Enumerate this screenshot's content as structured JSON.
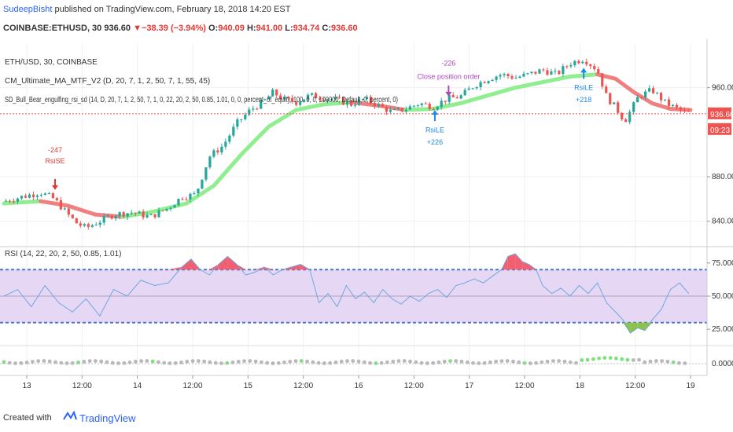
{
  "header": {
    "author": "SudeepBisht",
    "published_text": "published on TradingView.com, February 18, 2018 14:20 EST",
    "symbol": "COINBASE:ETHUSD, 30",
    "price": "936.60",
    "change": "▼−38.39 (−3.94%)",
    "o_label": "O:",
    "o_value": "940.09",
    "h_label": "H:",
    "h_value": "941.00",
    "l_label": "L:",
    "l_value": "934.74",
    "c_label": "C:",
    "c_value": "936.60"
  },
  "footer": {
    "created_with": "Created with",
    "brand": "TradingView"
  },
  "colors": {
    "up": "#26a69a",
    "down": "#ef5350",
    "ma_up": "#90ee90",
    "ma_down": "#f08080",
    "rsi_line": "#6fa8dc",
    "rsi_band": "#e6d7f5",
    "accent": "#2962ff"
  },
  "chart_data": [
    {
      "type": "candlestick",
      "title_lines": [
        "ETH/USD, 30, COINBASE",
        "CM_Ultimate_MA_MTF_V2 (D, 20, 7, 1, 2, 50, 7, 1, 55, 45)",
        "SD_Bull_Bear_engulfing_rsi_sd (14, D, 20, 7, 1, 2, 50, 7, 1, 0, 22, 20, 2, 50, 0.85, 1.01, 0, 0, percent_of_equity, 100, 0, 0, 100000, Default, 0, percent, 0)"
      ],
      "ylim": [
        820,
        1000
      ],
      "y_ticks": [
        "960.00",
        "880.00",
        "840.00"
      ],
      "last_price_label": "936.60",
      "countdown_label": "09:23",
      "annotations": [
        {
          "text": "-247",
          "x": 0.056,
          "y": 902
        },
        {
          "text": "RsiSE",
          "x": 0.056,
          "y": 892
        },
        {
          "text": "-226",
          "x": 0.487,
          "y": 980
        },
        {
          "text": "Close position order",
          "x": 0.487,
          "y": 968
        },
        {
          "text": "RsiLE",
          "x": 0.472,
          "y": 920
        },
        {
          "text": "+226",
          "x": 0.472,
          "y": 909
        },
        {
          "text": "RsiLE",
          "x": 0.635,
          "y": 958
        },
        {
          "text": "+218",
          "x": 0.635,
          "y": 947
        }
      ],
      "price_points": [
        [
          0.0,
          858
        ],
        [
          0.02,
          862
        ],
        [
          0.04,
          866
        ],
        [
          0.055,
          860
        ],
        [
          0.07,
          846
        ],
        [
          0.08,
          838
        ],
        [
          0.09,
          834
        ],
        [
          0.105,
          840
        ],
        [
          0.12,
          846
        ],
        [
          0.14,
          848
        ],
        [
          0.16,
          844
        ],
        [
          0.18,
          852
        ],
        [
          0.195,
          862
        ],
        [
          0.21,
          864
        ],
        [
          0.225,
          898
        ],
        [
          0.24,
          908
        ],
        [
          0.255,
          928
        ],
        [
          0.27,
          940
        ],
        [
          0.285,
          948
        ],
        [
          0.295,
          956
        ],
        [
          0.305,
          950
        ],
        [
          0.32,
          947
        ],
        [
          0.335,
          953
        ],
        [
          0.35,
          951
        ],
        [
          0.365,
          949
        ],
        [
          0.38,
          945
        ],
        [
          0.395,
          950
        ],
        [
          0.41,
          944
        ],
        [
          0.425,
          938
        ],
        [
          0.44,
          941
        ],
        [
          0.455,
          946
        ],
        [
          0.47,
          943
        ],
        [
          0.485,
          950
        ],
        [
          0.5,
          952
        ],
        [
          0.515,
          962
        ],
        [
          0.53,
          968
        ],
        [
          0.545,
          972
        ],
        [
          0.56,
          969
        ],
        [
          0.575,
          972
        ],
        [
          0.59,
          976
        ],
        [
          0.605,
          972
        ],
        [
          0.62,
          982
        ],
        [
          0.635,
          986
        ],
        [
          0.65,
          976
        ],
        [
          0.66,
          952
        ],
        [
          0.67,
          942
        ],
        [
          0.68,
          930
        ],
        [
          0.695,
          952
        ],
        [
          0.71,
          958
        ],
        [
          0.725,
          946
        ],
        [
          0.735,
          942
        ],
        [
          0.745,
          938
        ],
        [
          0.752,
          937
        ]
      ],
      "ma_points": [
        [
          0.0,
          856
        ],
        [
          0.04,
          858
        ],
        [
          0.07,
          854
        ],
        [
          0.1,
          846
        ],
        [
          0.13,
          844
        ],
        [
          0.16,
          848
        ],
        [
          0.2,
          856
        ],
        [
          0.23,
          872
        ],
        [
          0.26,
          900
        ],
        [
          0.29,
          925
        ],
        [
          0.32,
          940
        ],
        [
          0.35,
          945
        ],
        [
          0.38,
          947
        ],
        [
          0.41,
          944
        ],
        [
          0.44,
          940
        ],
        [
          0.47,
          941
        ],
        [
          0.5,
          946
        ],
        [
          0.53,
          953
        ],
        [
          0.56,
          960
        ],
        [
          0.59,
          965
        ],
        [
          0.62,
          970
        ],
        [
          0.65,
          972
        ],
        [
          0.67,
          968
        ],
        [
          0.69,
          956
        ],
        [
          0.71,
          946
        ],
        [
          0.73,
          941
        ],
        [
          0.752,
          940
        ]
      ]
    },
    {
      "type": "line",
      "title": "RSI (14, 22, 20, 2, 50, 0.85, 1.01)",
      "ylim": [
        15,
        85
      ],
      "y_ticks": [
        "75.0000",
        "50.0000",
        "25.0000"
      ],
      "bands": [
        30,
        70
      ],
      "rsi_points": [
        [
          0.0,
          50
        ],
        [
          0.015,
          55
        ],
        [
          0.03,
          42
        ],
        [
          0.045,
          58
        ],
        [
          0.06,
          45
        ],
        [
          0.075,
          38
        ],
        [
          0.09,
          48
        ],
        [
          0.105,
          35
        ],
        [
          0.12,
          55
        ],
        [
          0.135,
          50
        ],
        [
          0.15,
          62
        ],
        [
          0.165,
          58
        ],
        [
          0.18,
          60
        ],
        [
          0.195,
          72
        ],
        [
          0.205,
          78
        ],
        [
          0.215,
          70
        ],
        [
          0.225,
          66
        ],
        [
          0.235,
          74
        ],
        [
          0.245,
          80
        ],
        [
          0.255,
          74
        ],
        [
          0.265,
          66
        ],
        [
          0.275,
          68
        ],
        [
          0.285,
          72
        ],
        [
          0.295,
          66
        ],
        [
          0.305,
          70
        ],
        [
          0.315,
          72
        ],
        [
          0.325,
          74
        ],
        [
          0.335,
          70
        ],
        [
          0.345,
          45
        ],
        [
          0.355,
          52
        ],
        [
          0.365,
          42
        ],
        [
          0.375,
          58
        ],
        [
          0.385,
          48
        ],
        [
          0.395,
          53
        ],
        [
          0.405,
          45
        ],
        [
          0.415,
          55
        ],
        [
          0.425,
          48
        ],
        [
          0.435,
          44
        ],
        [
          0.445,
          50
        ],
        [
          0.455,
          46
        ],
        [
          0.465,
          52
        ],
        [
          0.475,
          55
        ],
        [
          0.485,
          49
        ],
        [
          0.495,
          58
        ],
        [
          0.505,
          60
        ],
        [
          0.515,
          63
        ],
        [
          0.525,
          60
        ],
        [
          0.535,
          65
        ],
        [
          0.545,
          70
        ],
        [
          0.552,
          80
        ],
        [
          0.56,
          82
        ],
        [
          0.568,
          76
        ],
        [
          0.575,
          74
        ],
        [
          0.583,
          70
        ],
        [
          0.59,
          58
        ],
        [
          0.6,
          52
        ],
        [
          0.61,
          56
        ],
        [
          0.62,
          50
        ],
        [
          0.63,
          58
        ],
        [
          0.64,
          52
        ],
        [
          0.65,
          60
        ],
        [
          0.66,
          45
        ],
        [
          0.67,
          38
        ],
        [
          0.678,
          32
        ],
        [
          0.686,
          22
        ],
        [
          0.694,
          26
        ],
        [
          0.702,
          24
        ],
        [
          0.71,
          32
        ],
        [
          0.72,
          40
        ],
        [
          0.73,
          55
        ],
        [
          0.74,
          60
        ],
        [
          0.75,
          52
        ]
      ]
    },
    {
      "type": "area",
      "y_ticks": [
        "0.0000"
      ],
      "x_tick_labels": [
        "13",
        "12:00",
        "14",
        "12:00",
        "15",
        "12:00",
        "16",
        "12:00",
        "17",
        "12:00",
        "18",
        "12:00",
        "19"
      ]
    }
  ]
}
